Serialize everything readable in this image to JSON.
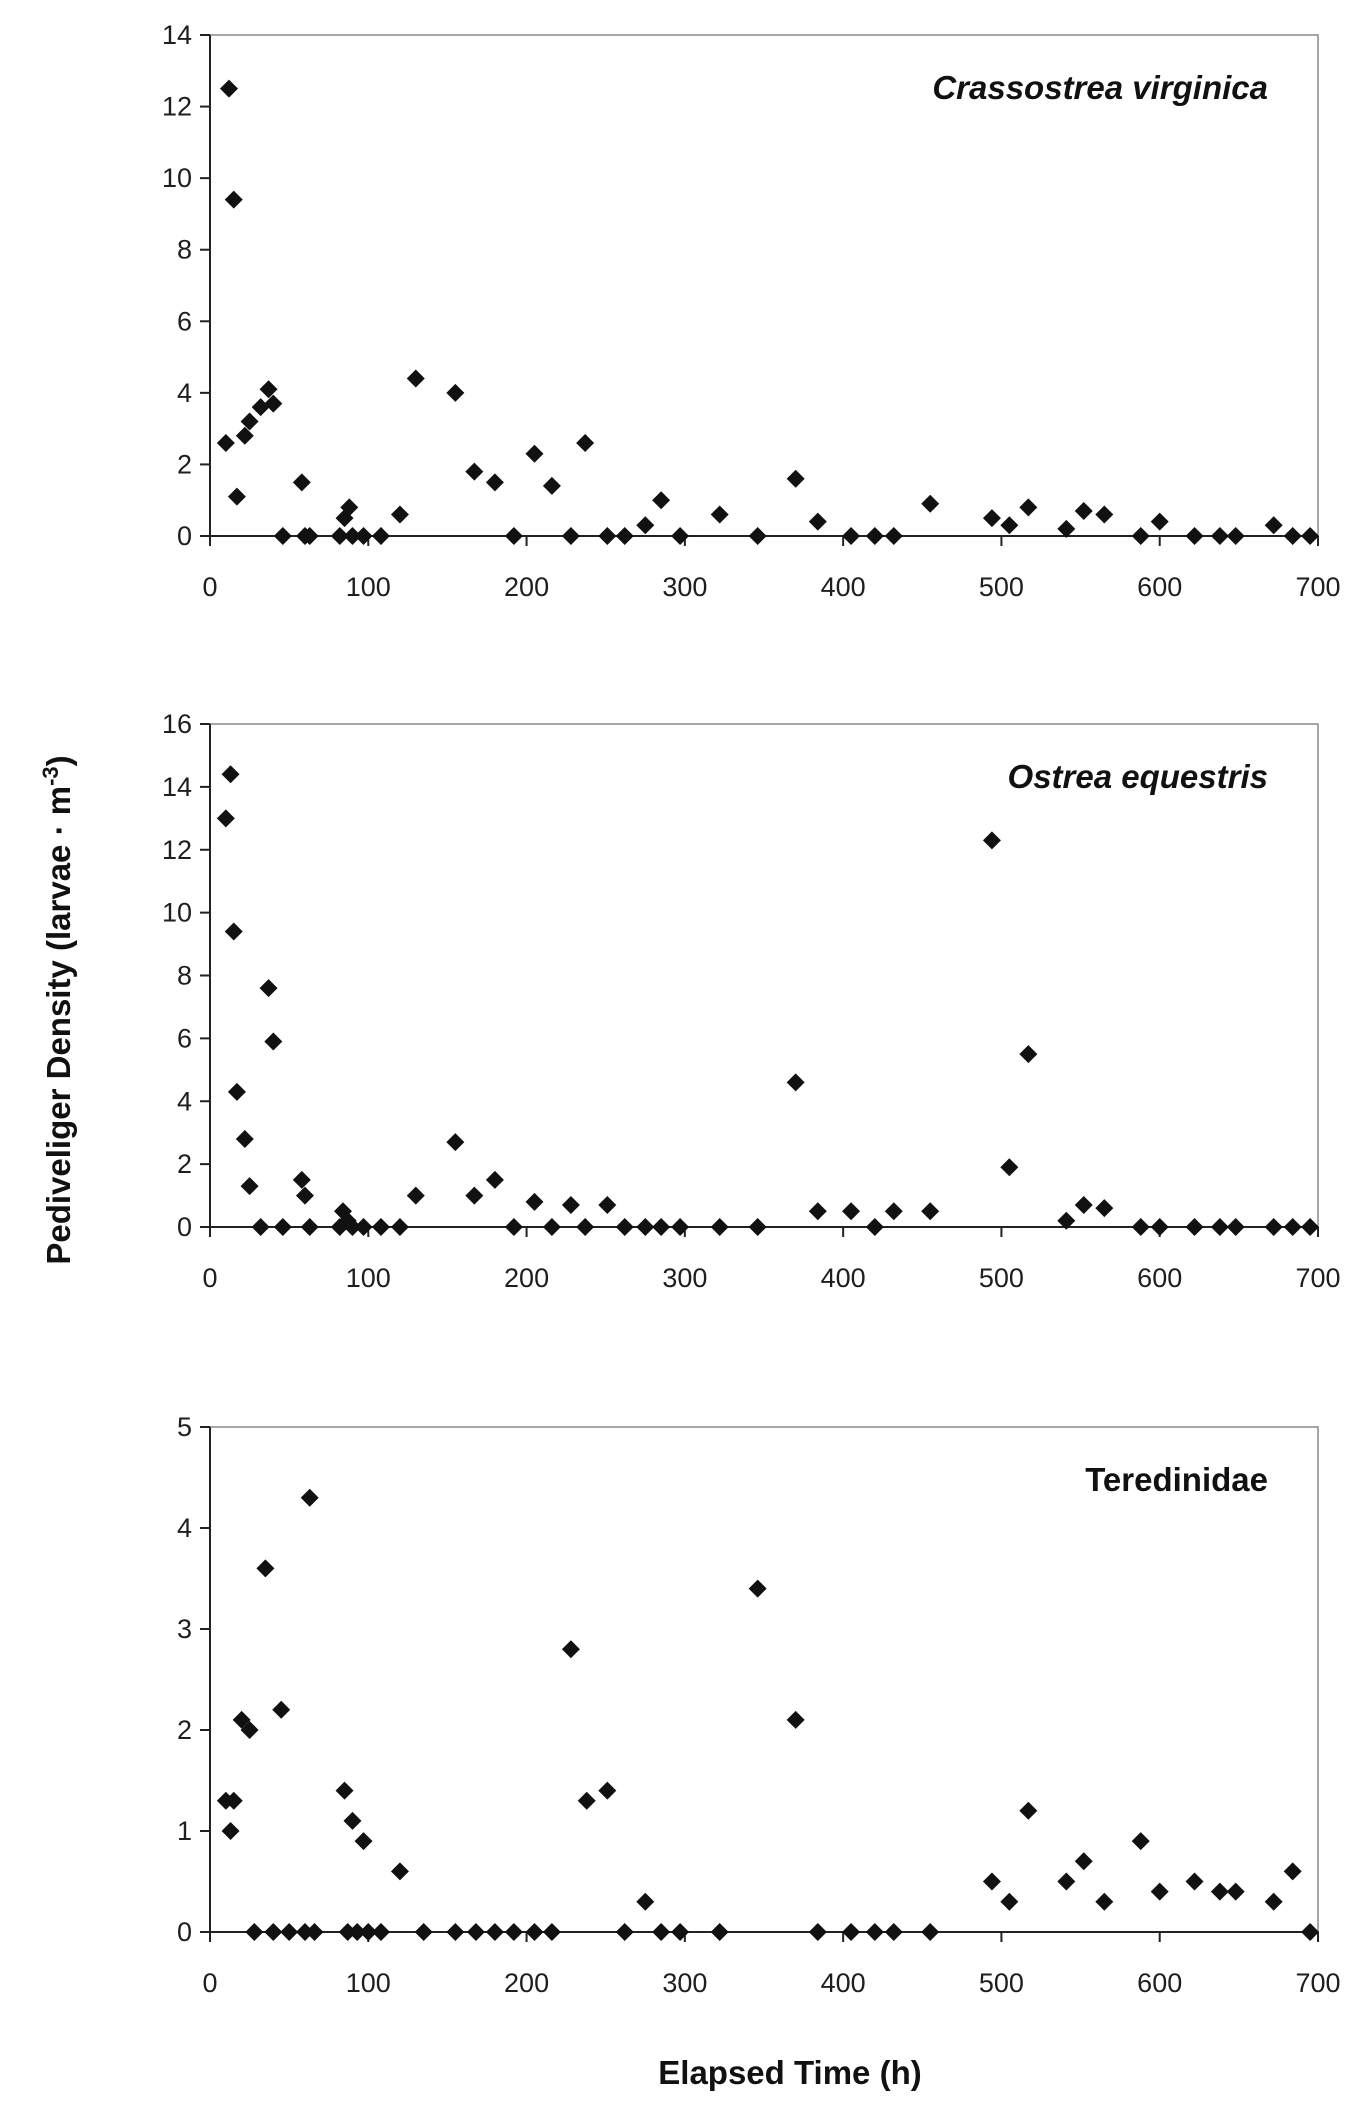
{
  "ylabel": "Pediveliger Density (larvae · m",
  "ylabel_superscript": "-3",
  "ylabel_close": ")",
  "xlabel": "Elapsed Time (h)",
  "colors": {
    "marker": "#111111",
    "frame": "#8a8a8a",
    "axis": "#222222"
  },
  "chart_data": [
    {
      "type": "scatter",
      "title": "Crassostrea virginica",
      "title_italic": true,
      "xlim": [
        0,
        700
      ],
      "ylim": [
        0,
        14
      ],
      "xticks": [
        0,
        100,
        200,
        300,
        400,
        500,
        600,
        700
      ],
      "yticks": [
        0,
        2,
        4,
        6,
        8,
        10,
        12,
        14
      ],
      "points": [
        [
          10,
          2.6
        ],
        [
          12,
          12.5
        ],
        [
          15,
          9.4
        ],
        [
          17,
          1.1
        ],
        [
          22,
          2.8
        ],
        [
          25,
          3.2
        ],
        [
          32,
          3.6
        ],
        [
          37,
          4.1
        ],
        [
          40,
          3.7
        ],
        [
          46,
          0
        ],
        [
          58,
          1.5
        ],
        [
          60,
          0
        ],
        [
          63,
          0
        ],
        [
          82,
          0
        ],
        [
          85,
          0.5
        ],
        [
          88,
          0.8
        ],
        [
          90,
          0
        ],
        [
          97,
          0
        ],
        [
          108,
          0
        ],
        [
          120,
          0.6
        ],
        [
          130,
          4.4
        ],
        [
          155,
          4.0
        ],
        [
          167,
          1.8
        ],
        [
          180,
          1.5
        ],
        [
          192,
          0
        ],
        [
          205,
          2.3
        ],
        [
          216,
          1.4
        ],
        [
          228,
          0
        ],
        [
          237,
          2.6
        ],
        [
          251,
          0
        ],
        [
          262,
          0
        ],
        [
          275,
          0.3
        ],
        [
          285,
          1.0
        ],
        [
          297,
          0
        ],
        [
          322,
          0.6
        ],
        [
          346,
          0
        ],
        [
          370,
          1.6
        ],
        [
          384,
          0.4
        ],
        [
          405,
          0
        ],
        [
          420,
          0
        ],
        [
          432,
          0
        ],
        [
          455,
          0.9
        ],
        [
          494,
          0.5
        ],
        [
          505,
          0.3
        ],
        [
          517,
          0.8
        ],
        [
          541,
          0.2
        ],
        [
          552,
          0.7
        ],
        [
          565,
          0.6
        ],
        [
          588,
          0
        ],
        [
          600,
          0.4
        ],
        [
          622,
          0
        ],
        [
          638,
          0
        ],
        [
          648,
          0
        ],
        [
          672,
          0.3
        ],
        [
          684,
          0
        ],
        [
          695,
          0
        ]
      ]
    },
    {
      "type": "scatter",
      "title": "Ostrea equestris",
      "title_italic": true,
      "xlim": [
        0,
        700
      ],
      "ylim": [
        0,
        16
      ],
      "xticks": [
        0,
        100,
        200,
        300,
        400,
        500,
        600,
        700
      ],
      "yticks": [
        0,
        2,
        4,
        6,
        8,
        10,
        12,
        14,
        16
      ],
      "points": [
        [
          10,
          13.0
        ],
        [
          13,
          14.4
        ],
        [
          15,
          9.4
        ],
        [
          17,
          4.3
        ],
        [
          22,
          2.8
        ],
        [
          25,
          1.3
        ],
        [
          32,
          0
        ],
        [
          37,
          7.6
        ],
        [
          40,
          5.9
        ],
        [
          46,
          0
        ],
        [
          58,
          1.5
        ],
        [
          60,
          1.0
        ],
        [
          63,
          0
        ],
        [
          82,
          0
        ],
        [
          84,
          0.5
        ],
        [
          87,
          0.2
        ],
        [
          90,
          0
        ],
        [
          97,
          0
        ],
        [
          108,
          0
        ],
        [
          120,
          0
        ],
        [
          130,
          1.0
        ],
        [
          155,
          2.7
        ],
        [
          167,
          1.0
        ],
        [
          180,
          1.5
        ],
        [
          192,
          0
        ],
        [
          205,
          0.8
        ],
        [
          216,
          0
        ],
        [
          228,
          0.7
        ],
        [
          237,
          0
        ],
        [
          251,
          0.7
        ],
        [
          262,
          0
        ],
        [
          275,
          0
        ],
        [
          285,
          0
        ],
        [
          297,
          0
        ],
        [
          322,
          0
        ],
        [
          346,
          0
        ],
        [
          370,
          4.6
        ],
        [
          384,
          0.5
        ],
        [
          405,
          0.5
        ],
        [
          420,
          0
        ],
        [
          432,
          0.5
        ],
        [
          455,
          0.5
        ],
        [
          494,
          12.3
        ],
        [
          505,
          1.9
        ],
        [
          517,
          5.5
        ],
        [
          541,
          0.2
        ],
        [
          552,
          0.7
        ],
        [
          565,
          0.6
        ],
        [
          588,
          0
        ],
        [
          600,
          0
        ],
        [
          622,
          0
        ],
        [
          638,
          0
        ],
        [
          648,
          0
        ],
        [
          672,
          0
        ],
        [
          684,
          0
        ],
        [
          695,
          0
        ]
      ]
    },
    {
      "type": "scatter",
      "title": "Teredinidae",
      "title_italic": false,
      "xlim": [
        0,
        700
      ],
      "ylim": [
        0,
        5
      ],
      "xticks": [
        0,
        100,
        200,
        300,
        400,
        500,
        600,
        700
      ],
      "yticks": [
        0,
        1,
        2,
        3,
        4,
        5
      ],
      "points": [
        [
          10,
          1.3
        ],
        [
          13,
          1.0
        ],
        [
          15,
          1.3
        ],
        [
          20,
          2.1
        ],
        [
          25,
          2.0
        ],
        [
          28,
          0
        ],
        [
          35,
          3.6
        ],
        [
          40,
          0
        ],
        [
          45,
          2.2
        ],
        [
          50,
          0
        ],
        [
          60,
          0
        ],
        [
          63,
          4.3
        ],
        [
          66,
          0
        ],
        [
          85,
          1.4
        ],
        [
          87,
          0
        ],
        [
          90,
          1.1
        ],
        [
          93,
          0
        ],
        [
          97,
          0.9
        ],
        [
          100,
          0
        ],
        [
          108,
          0
        ],
        [
          120,
          0.6
        ],
        [
          135,
          0
        ],
        [
          155,
          0
        ],
        [
          168,
          0
        ],
        [
          180,
          0
        ],
        [
          192,
          0
        ],
        [
          205,
          0
        ],
        [
          216,
          0
        ],
        [
          228,
          2.8
        ],
        [
          238,
          1.3
        ],
        [
          251,
          1.4
        ],
        [
          262,
          0
        ],
        [
          275,
          0.3
        ],
        [
          285,
          0
        ],
        [
          297,
          0
        ],
        [
          322,
          0
        ],
        [
          346,
          3.4
        ],
        [
          370,
          2.1
        ],
        [
          384,
          0
        ],
        [
          405,
          0
        ],
        [
          420,
          0
        ],
        [
          432,
          0
        ],
        [
          455,
          0
        ],
        [
          494,
          0.5
        ],
        [
          505,
          0.3
        ],
        [
          517,
          1.2
        ],
        [
          541,
          0.5
        ],
        [
          552,
          0.7
        ],
        [
          565,
          0.3
        ],
        [
          588,
          0.9
        ],
        [
          600,
          0.4
        ],
        [
          622,
          0.5
        ],
        [
          638,
          0.4
        ],
        [
          648,
          0.4
        ],
        [
          672,
          0.3
        ],
        [
          684,
          0.6
        ],
        [
          695,
          0
        ]
      ]
    }
  ]
}
